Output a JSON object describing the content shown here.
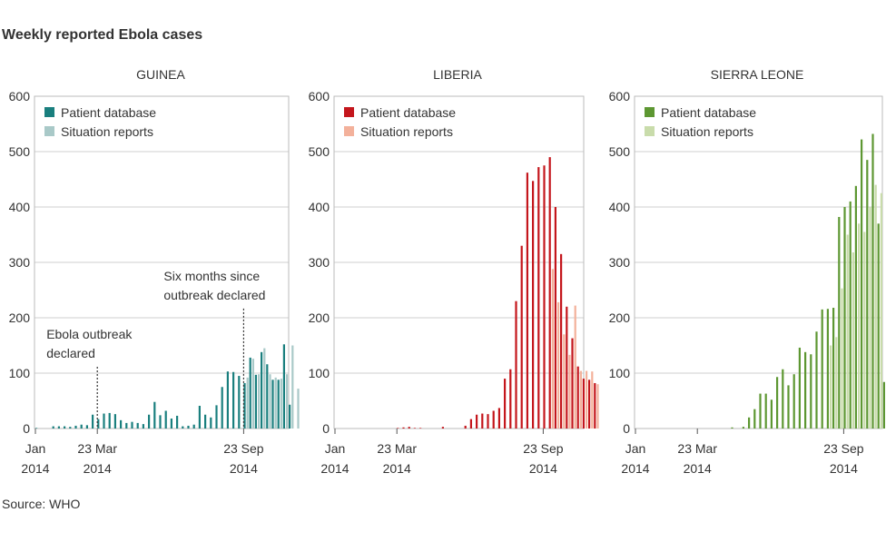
{
  "title": "Weekly reported Ebola cases",
  "source": "Source: WHO",
  "chart_data": [
    {
      "type": "bar",
      "title": "GUINEA",
      "ylim": [
        0,
        600
      ],
      "yticks": [
        0,
        100,
        200,
        300,
        400,
        500,
        600
      ],
      "xticks": [
        {
          "week": 0,
          "line1": "Jan",
          "line2": "2014"
        },
        {
          "week": 11,
          "line1": "23 Mar",
          "line2": "2014"
        },
        {
          "week": 37,
          "line1": "23 Sep",
          "line2": "2014"
        }
      ],
      "grid": true,
      "legend_position": "top-left",
      "colors": {
        "patient": "#1a7f7e",
        "situation": "#a9c9c8"
      },
      "series": [
        {
          "name": "Patient database",
          "start_week": 0,
          "values": [
            1,
            0,
            0,
            4,
            4,
            4,
            3,
            5,
            7,
            6,
            25,
            17,
            27,
            28,
            26,
            15,
            10,
            12,
            10,
            8,
            25,
            48,
            24,
            32,
            18,
            23,
            4,
            5,
            7,
            41,
            25,
            20,
            42,
            75,
            103,
            102,
            95,
            82,
            128,
            97,
            138,
            116,
            88,
            88,
            152,
            43
          ]
        },
        {
          "name": "Situation reports",
          "start_week": 37,
          "values": [
            92,
            126,
            98,
            145,
            98,
            92,
            90,
            98,
            150,
            72
          ]
        }
      ],
      "annotations": [
        {
          "week": 11,
          "value": 105,
          "text": [
            "Ebola outbreak",
            "declared"
          ]
        },
        {
          "week": 37,
          "value": 210,
          "text": [
            "Six months since",
            "outbreak declared"
          ]
        }
      ]
    },
    {
      "type": "bar",
      "title": "LIBERIA",
      "ylim": [
        0,
        600
      ],
      "yticks": [
        0,
        100,
        200,
        300,
        400,
        500,
        600
      ],
      "xticks": [
        {
          "week": 0,
          "line1": "Jan",
          "line2": "2014"
        },
        {
          "week": 11,
          "line1": "23 Mar",
          "line2": "2014"
        },
        {
          "week": 37,
          "line1": "23 Sep",
          "line2": "2014"
        }
      ],
      "grid": true,
      "legend_position": "top-left",
      "colors": {
        "patient": "#c4161c",
        "situation": "#f3b19b"
      },
      "series": [
        {
          "name": "Patient database",
          "start_week": 0,
          "values": [
            0,
            0,
            0,
            0,
            0,
            0,
            0,
            0,
            0,
            0,
            0,
            1,
            2,
            3,
            1,
            1,
            0,
            0,
            0,
            3,
            0,
            0,
            0,
            5,
            17,
            25,
            27,
            26,
            32,
            37,
            90,
            107,
            230,
            330,
            462,
            447,
            472,
            475,
            490,
            400,
            315,
            220,
            163,
            112,
            90,
            88,
            82
          ]
        },
        {
          "name": "Situation reports",
          "start_week": 38,
          "values": [
            288,
            228,
            170,
            133,
            222,
            104,
            104,
            103,
            80
          ]
        }
      ]
    },
    {
      "type": "bar",
      "title": "SIERRA LEONE",
      "ylim": [
        0,
        600
      ],
      "yticks": [
        0,
        100,
        200,
        300,
        400,
        500,
        600
      ],
      "xticks": [
        {
          "week": 0,
          "line1": "Jan",
          "line2": "2014"
        },
        {
          "week": 11,
          "line1": "23 Mar",
          "line2": "2014"
        },
        {
          "week": 37,
          "line1": "23 Sep",
          "line2": "2014"
        }
      ],
      "grid": true,
      "legend_position": "top-left",
      "colors": {
        "patient": "#5d9732",
        "situation": "#c9dcab"
      },
      "series": [
        {
          "name": "Patient database",
          "start_week": 0,
          "values": [
            0,
            0,
            0,
            0,
            0,
            0,
            0,
            0,
            0,
            0,
            0,
            0,
            0,
            0,
            0,
            0,
            0,
            2,
            0,
            3,
            20,
            35,
            63,
            63,
            52,
            93,
            107,
            78,
            98,
            146,
            138,
            134,
            175,
            215,
            216,
            218,
            382,
            400,
            410,
            438,
            522,
            485,
            532,
            370,
            84
          ]
        },
        {
          "name": "Situation reports",
          "start_week": 34,
          "values": [
            150,
            165,
            253,
            350,
            318,
            370,
            355,
            400,
            440,
            425,
            532
          ]
        }
      ]
    }
  ]
}
